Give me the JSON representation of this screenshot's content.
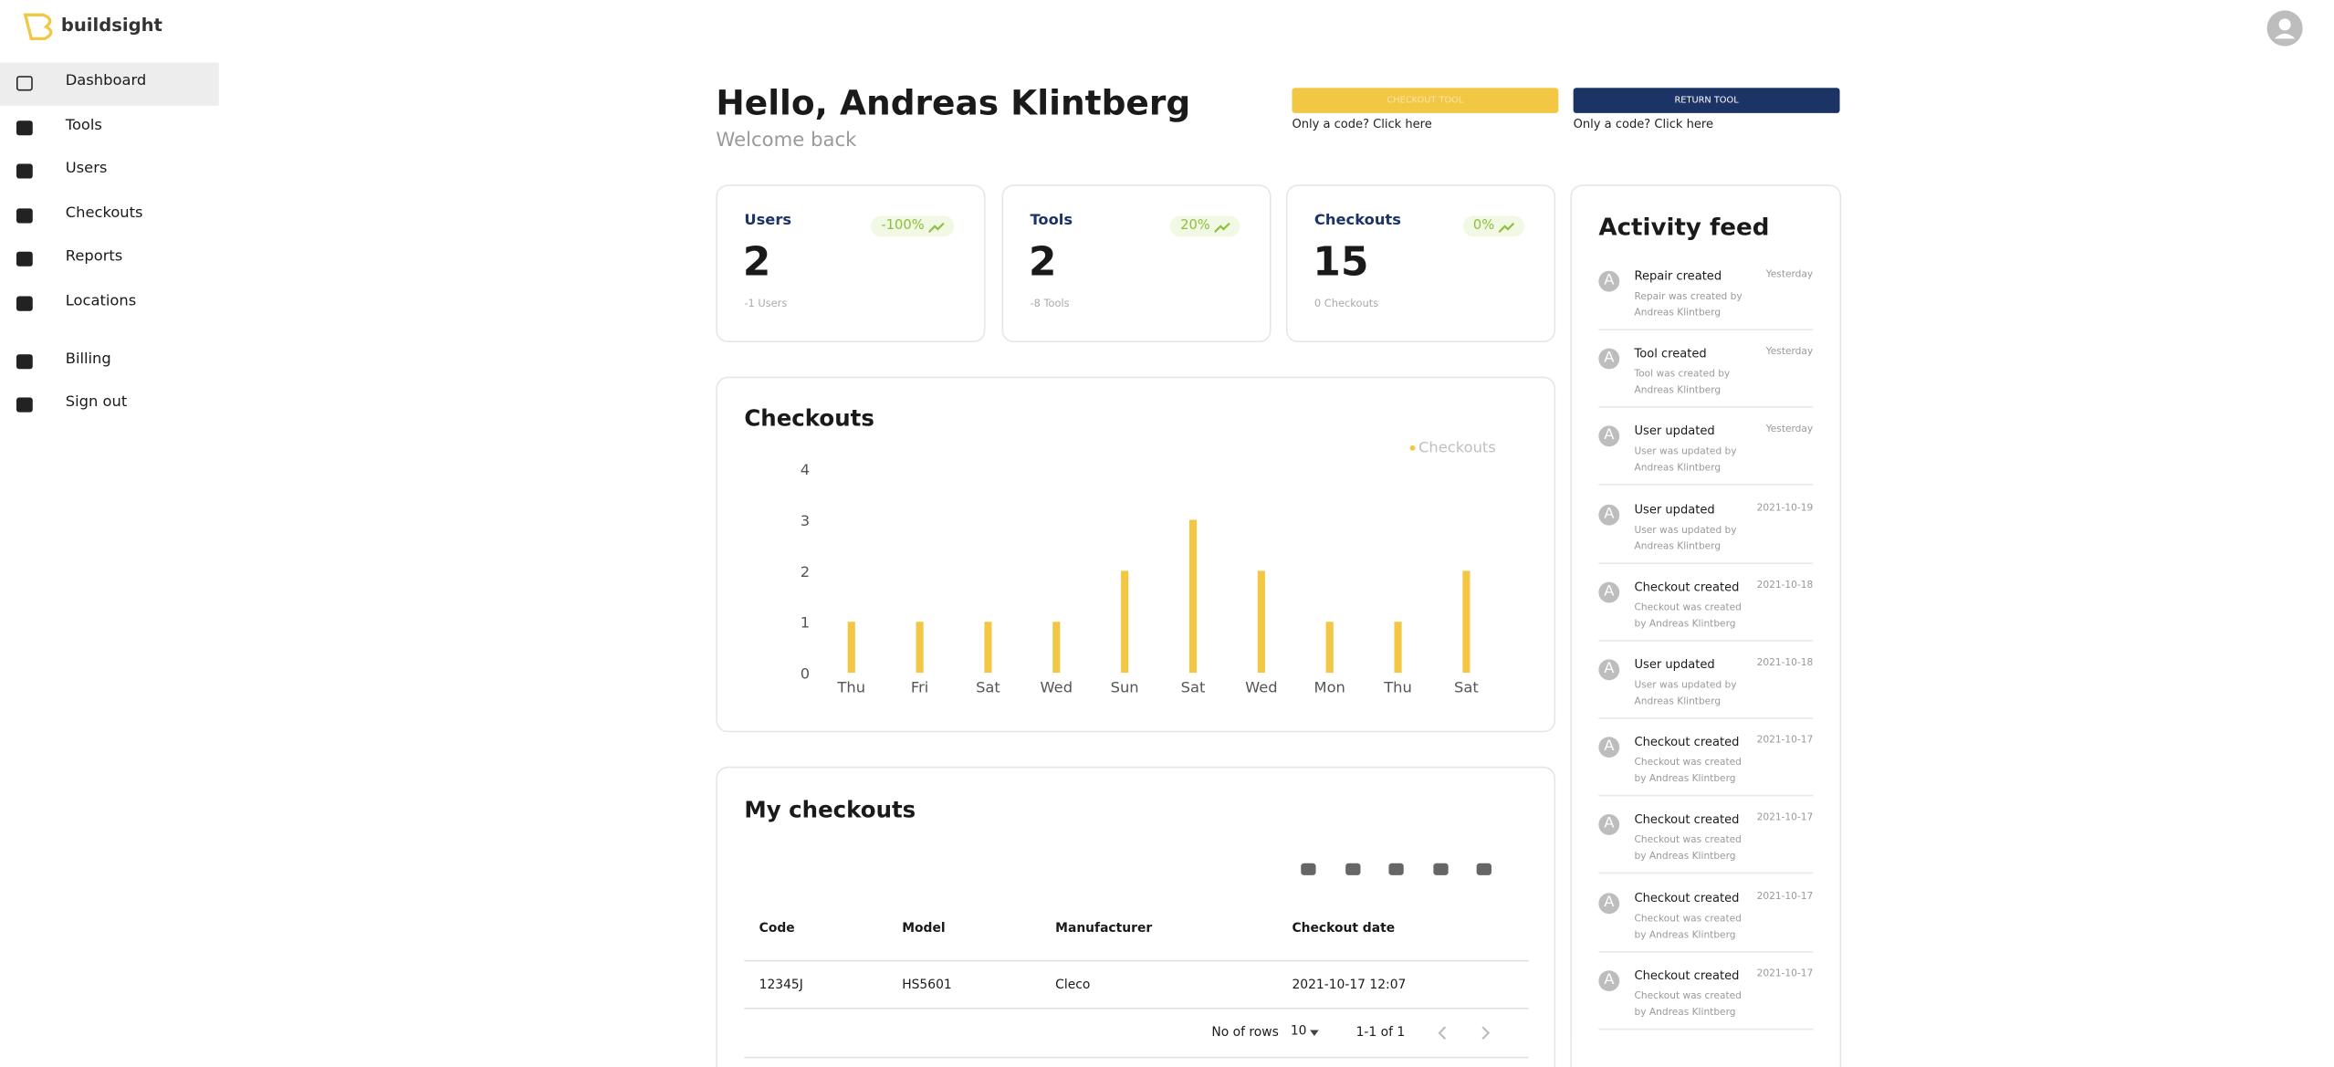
{
  "brand": "buildsight",
  "nav": [
    "Dashboard",
    "Tools",
    "Users",
    "Checkouts",
    "Reports",
    "Locations",
    "Billing",
    "Sign out"
  ],
  "header": {
    "greeting": "Hello, Andreas Klintberg",
    "subtitle": "Welcome back"
  },
  "actions": [
    {
      "label": "CHECKOUT TOOL",
      "hint": "Only a code? Click here"
    },
    {
      "label": "RETURN TOOL",
      "hint": "Only a code? Click here"
    }
  ],
  "stats": [
    {
      "title": "Users",
      "change": "-100%",
      "value": 2,
      "note": "-1 Users"
    },
    {
      "title": "Tools",
      "change": "20%",
      "value": 2,
      "note": "-8 Tools"
    },
    {
      "title": "Checkouts",
      "change": "0%",
      "value": 15,
      "note": "0 Checkouts"
    }
  ],
  "chart": {
    "type": "bar",
    "title": "Checkouts",
    "legend": "Checkouts",
    "color": "#f2c744",
    "categories": [
      "Thu",
      "Fri",
      "Sat",
      "Wed",
      "Sun",
      "Sat",
      "Wed",
      "Mon",
      "Thu",
      "Sat"
    ],
    "values": [
      1,
      1,
      1,
      1,
      2,
      3,
      2,
      1,
      1,
      2
    ],
    "ylim": [
      0,
      4
    ],
    "yticks": [
      0,
      1,
      2,
      3,
      4
    ]
  },
  "table": {
    "title": "My checkouts",
    "columns": [
      "Code",
      "Model",
      "Manufacturer",
      "Checkout date"
    ],
    "rows": [
      [
        "12345J",
        "HS5601",
        "Cleco",
        "2021-10-17 12:07"
      ]
    ],
    "pagination": {
      "rows_label": "No of rows",
      "rows_per_page": 10,
      "range": "1-1 of 1"
    }
  },
  "activity": {
    "title": "Activity feed",
    "avatar": "A",
    "items": [
      {
        "title": "Repair created",
        "detail": "Repair was created by Andreas Klintberg",
        "time": "Yesterday"
      },
      {
        "title": "Tool created",
        "detail": "Tool was created by Andreas Klintberg",
        "time": "Yesterday"
      },
      {
        "title": "User updated",
        "detail": "User was updated by Andreas Klintberg",
        "time": "Yesterday"
      },
      {
        "title": "User updated",
        "detail": "User was updated by Andreas Klintberg",
        "time": "2021-10-19"
      },
      {
        "title": "Checkout created",
        "detail": "Checkout was created by Andreas Klintberg",
        "time": "2021-10-18"
      },
      {
        "title": "User updated",
        "detail": "User was updated by Andreas Klintberg",
        "time": "2021-10-18"
      },
      {
        "title": "Checkout created",
        "detail": "Checkout was created by Andreas Klintberg",
        "time": "2021-10-17"
      },
      {
        "title": "Checkout created",
        "detail": "Checkout was created by Andreas Klintberg",
        "time": "2021-10-17"
      },
      {
        "title": "Checkout created",
        "detail": "Checkout was created by Andreas Klintberg",
        "time": "2021-10-17"
      },
      {
        "title": "Checkout created",
        "detail": "Checkout was created by Andreas Klintberg",
        "time": "2021-10-17"
      }
    ]
  }
}
